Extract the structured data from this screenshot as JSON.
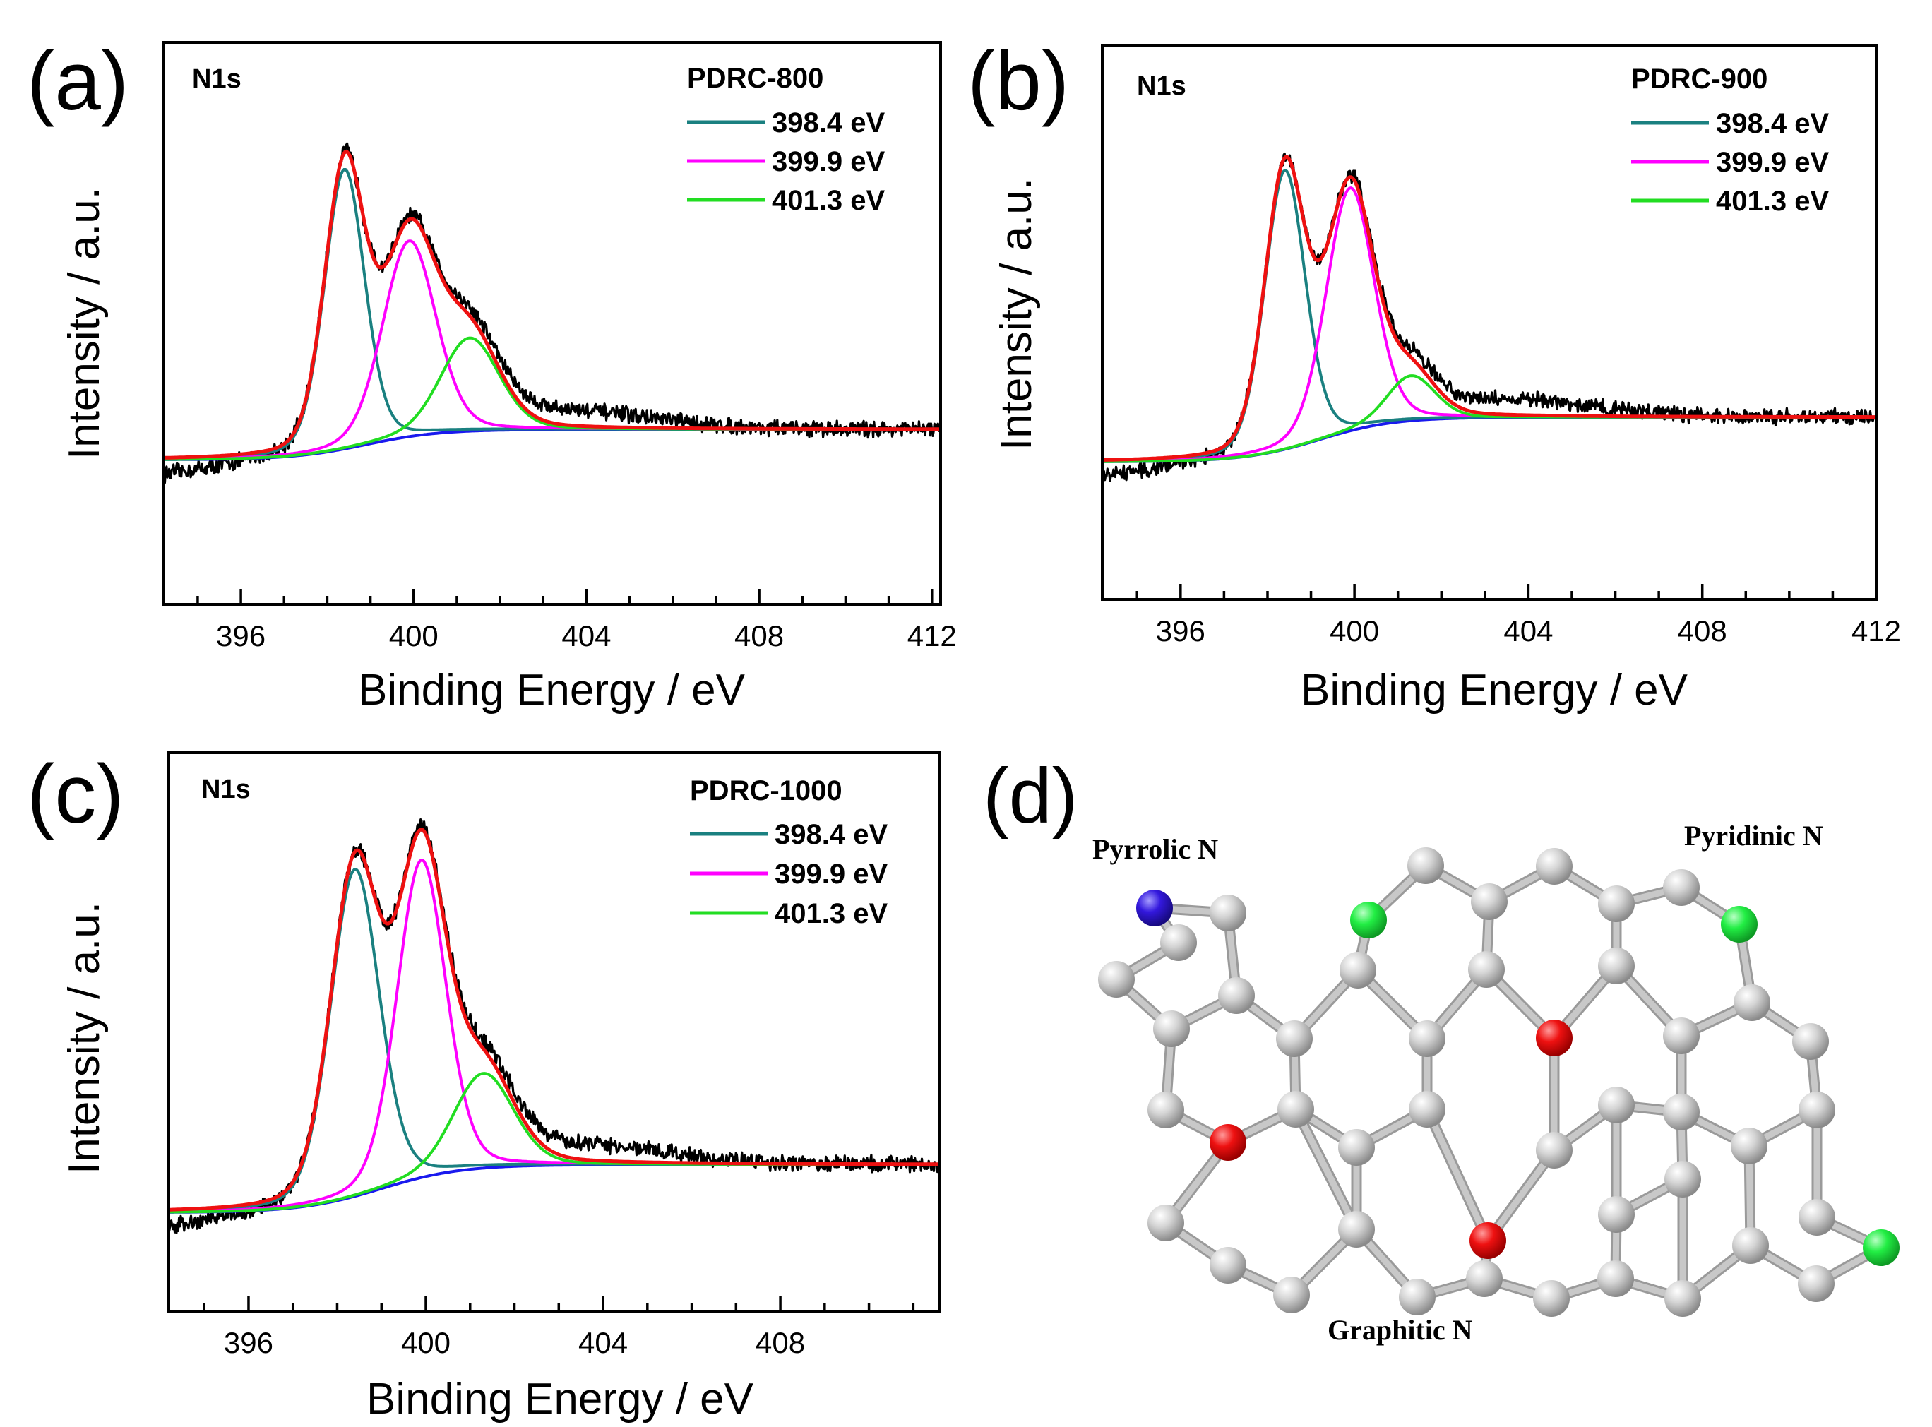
{
  "chart_data": [
    {
      "panel": "(a)",
      "type": "line",
      "spectrum": "N1s",
      "sample": "PDRC-800",
      "xlabel": "Binding Energy / eV",
      "ylabel": "Intensity / a.u.",
      "xlim": [
        394.2,
        412.2
      ],
      "ylim": [
        0,
        1.0
      ],
      "xticks": [
        396,
        400,
        404,
        408,
        412
      ],
      "xtick_labels": [
        "396",
        "400",
        "404",
        "408",
        "412"
      ],
      "background": {
        "low": 0.165,
        "high": 0.23,
        "center": 398.9,
        "width": 0.85
      },
      "peaks": [
        {
          "label": "398.4 eV",
          "center": 398.4,
          "fwhm": 1.1,
          "height": 0.6,
          "color": "#1a8080"
        },
        {
          "label": "399.9 eV",
          "center": 399.9,
          "fwhm": 1.45,
          "height": 0.42,
          "color": "#ff00ff"
        },
        {
          "label": "401.3 eV",
          "center": 401.3,
          "fwhm": 1.6,
          "height": 0.2,
          "color": "#22dd22"
        }
      ],
      "envelope_color": "#ee1111",
      "background_color": "#1a1aee",
      "raw_color": "#000000",
      "series": [
        {
          "name": "Raw data",
          "color": "#000000"
        },
        {
          "name": "Fitted envelope",
          "color": "#ee1111"
        },
        {
          "name": "Shirley background",
          "color": "#1a1aee"
        }
      ],
      "legend_position": "top-right"
    },
    {
      "panel": "(b)",
      "type": "line",
      "spectrum": "N1s",
      "sample": "PDRC-900",
      "xlabel": "Binding Energy / eV",
      "ylabel": "Intensity / a.u.",
      "xlim": [
        394.2,
        412.0
      ],
      "ylim": [
        0,
        1.0
      ],
      "xticks": [
        396,
        400,
        404,
        408,
        412
      ],
      "xtick_labels": [
        "396",
        "400",
        "404",
        "408",
        "412"
      ],
      "background": {
        "low": 0.146,
        "high": 0.245,
        "center": 399.2,
        "width": 0.85
      },
      "peaks": [
        {
          "label": "398.4 eV",
          "center": 398.4,
          "fwhm": 1.1,
          "height": 0.62,
          "color": "#1a8080"
        },
        {
          "label": "399.9 eV",
          "center": 399.9,
          "fwhm": 1.3,
          "height": 0.54,
          "color": "#ff00ff"
        },
        {
          "label": "401.3 eV",
          "center": 401.3,
          "fwhm": 1.3,
          "height": 0.1,
          "color": "#22dd22"
        }
      ],
      "envelope_color": "#ee1111",
      "background_color": "#1a1aee",
      "raw_color": "#000000",
      "series": [
        {
          "name": "Raw data",
          "color": "#000000"
        },
        {
          "name": "Fitted envelope",
          "color": "#ee1111"
        },
        {
          "name": "Shirley background",
          "color": "#1a1aee"
        }
      ],
      "legend_position": "top-right"
    },
    {
      "panel": "(c)",
      "type": "line",
      "spectrum": "N1s",
      "sample": "PDRC-1000",
      "xlabel": "Binding Energy / eV",
      "ylabel": "Intensity / a.u.",
      "xlim": [
        394.2,
        411.6
      ],
      "ylim": [
        0,
        1.0
      ],
      "xticks": [
        396,
        400,
        404,
        408
      ],
      "xtick_labels": [
        "396",
        "400",
        "404",
        "408"
      ],
      "background": {
        "low": 0.104,
        "high": 0.205,
        "center": 399.0,
        "width": 0.9
      },
      "peaks": [
        {
          "label": "398.4 eV",
          "center": 398.4,
          "fwhm": 1.3,
          "height": 0.69,
          "color": "#1a8080"
        },
        {
          "label": "399.9 eV",
          "center": 399.9,
          "fwhm": 1.3,
          "height": 0.67,
          "color": "#ff00ff"
        },
        {
          "label": "401.3 eV",
          "center": 401.3,
          "fwhm": 1.6,
          "height": 0.2,
          "color": "#22dd22"
        }
      ],
      "envelope_color": "#ee1111",
      "background_color": "#1a1aee",
      "raw_color": "#000000",
      "series": [
        {
          "name": "Raw data",
          "color": "#000000"
        },
        {
          "name": "Fitted envelope",
          "color": "#ee1111"
        },
        {
          "name": "Shirley background",
          "color": "#1a1aee"
        }
      ],
      "legend_position": "top-right"
    }
  ],
  "diagram": {
    "panel": "(d)",
    "labels": {
      "pyrrolic": "Pyrrolic N",
      "pyridinic": "Pyridinic N",
      "graphitic": "Graphitic N"
    },
    "colors": {
      "carbon": "#c0c0c0",
      "pyrrolic": "#3318dd",
      "pyridinic": "#22ee44",
      "graphitic": "#ee1111",
      "bond": "#c8c8c8"
    }
  }
}
